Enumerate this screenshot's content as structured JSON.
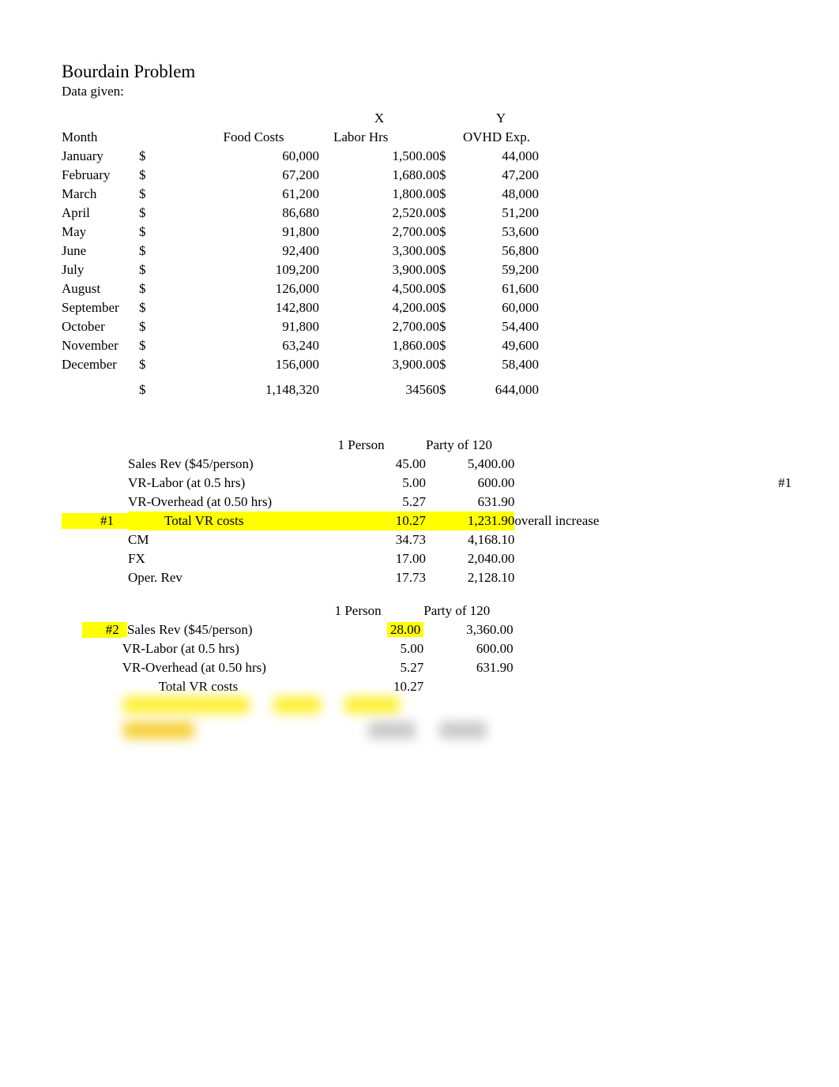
{
  "title": "Bourdain Problem",
  "subtitle": "Data given:",
  "columns": {
    "x_label": "X",
    "y_label": "Y",
    "month": "Month",
    "food": "Food Costs",
    "labor": "Labor Hrs",
    "ovhd": "OVHD Exp."
  },
  "currency": "$",
  "rows": [
    {
      "month": "January",
      "food": "60,000",
      "labor": "1,500.00",
      "ovhd": "44,000"
    },
    {
      "month": "February",
      "food": "67,200",
      "labor": "1,680.00",
      "ovhd": "47,200"
    },
    {
      "month": "March",
      "food": "61,200",
      "labor": "1,800.00",
      "ovhd": "48,000"
    },
    {
      "month": "April",
      "food": "86,680",
      "labor": "2,520.00",
      "ovhd": "51,200"
    },
    {
      "month": "May",
      "food": "91,800",
      "labor": "2,700.00",
      "ovhd": "53,600"
    },
    {
      "month": "June",
      "food": "92,400",
      "labor": "3,300.00",
      "ovhd": "56,800"
    },
    {
      "month": "July",
      "food": "109,200",
      "labor": "3,900.00",
      "ovhd": "59,200"
    },
    {
      "month": "August",
      "food": "126,000",
      "labor": "4,500.00",
      "ovhd": "61,600"
    },
    {
      "month": "September",
      "food": "142,800",
      "labor": "4,200.00",
      "ovhd": "60,000"
    },
    {
      "month": "October",
      "food": "91,800",
      "labor": "2,700.00",
      "ovhd": "54,400"
    },
    {
      "month": "November",
      "food": "63,240",
      "labor": "1,860.00",
      "ovhd": "49,600"
    },
    {
      "month": "December",
      "food": "156,000",
      "labor": "3,900.00",
      "ovhd": "58,400"
    }
  ],
  "totals": {
    "food": "1,148,320",
    "labor": "34560",
    "ovhd": "644,000"
  },
  "analysis1": {
    "header_p1": "1 Person",
    "header_p120": "Party of 120",
    "tag": "#1",
    "far_tag": "#1",
    "rows": [
      {
        "label": "Sales Rev ($45/person)",
        "p1": "45.00",
        "p120": "5,400.00"
      },
      {
        "label": "VR-Labor (at 0.5 hrs)",
        "p1": "5.00",
        "p120": "600.00"
      },
      {
        "label": "VR-Overhead (at 0.50 hrs)",
        "p1": "5.27",
        "p120": "631.90"
      },
      {
        "label": "Total VR costs",
        "p1": "10.27",
        "p120": "1,231.90",
        "note": "overall increase",
        "hl": true,
        "indent": true
      },
      {
        "label": "CM",
        "p1": "34.73",
        "p120": "4,168.10"
      },
      {
        "label": "FX",
        "p1": "17.00",
        "p120": "2,040.00"
      },
      {
        "label": "Oper. Rev",
        "p1": "17.73",
        "p120": "2,128.10"
      }
    ]
  },
  "analysis2": {
    "header_p1": "1 Person",
    "header_p120": "Party of 120",
    "tag": "#2",
    "rows": [
      {
        "label": "Sales Rev ($45/person)",
        "p1": "28.00",
        "p120": "3,360.00",
        "hl_lead": true
      },
      {
        "label": "VR-Labor (at 0.5 hrs)",
        "p1": "5.00",
        "p120": "600.00"
      },
      {
        "label": "VR-Overhead (at 0.50 hrs)",
        "p1": "5.27",
        "p120": "631.90"
      },
      {
        "label": "Total VR costs",
        "p1": "10.27",
        "p120": "",
        "indent": true
      }
    ]
  },
  "colors": {
    "highlight": "#ffff00",
    "text": "#000000",
    "bg": "#ffffff"
  }
}
